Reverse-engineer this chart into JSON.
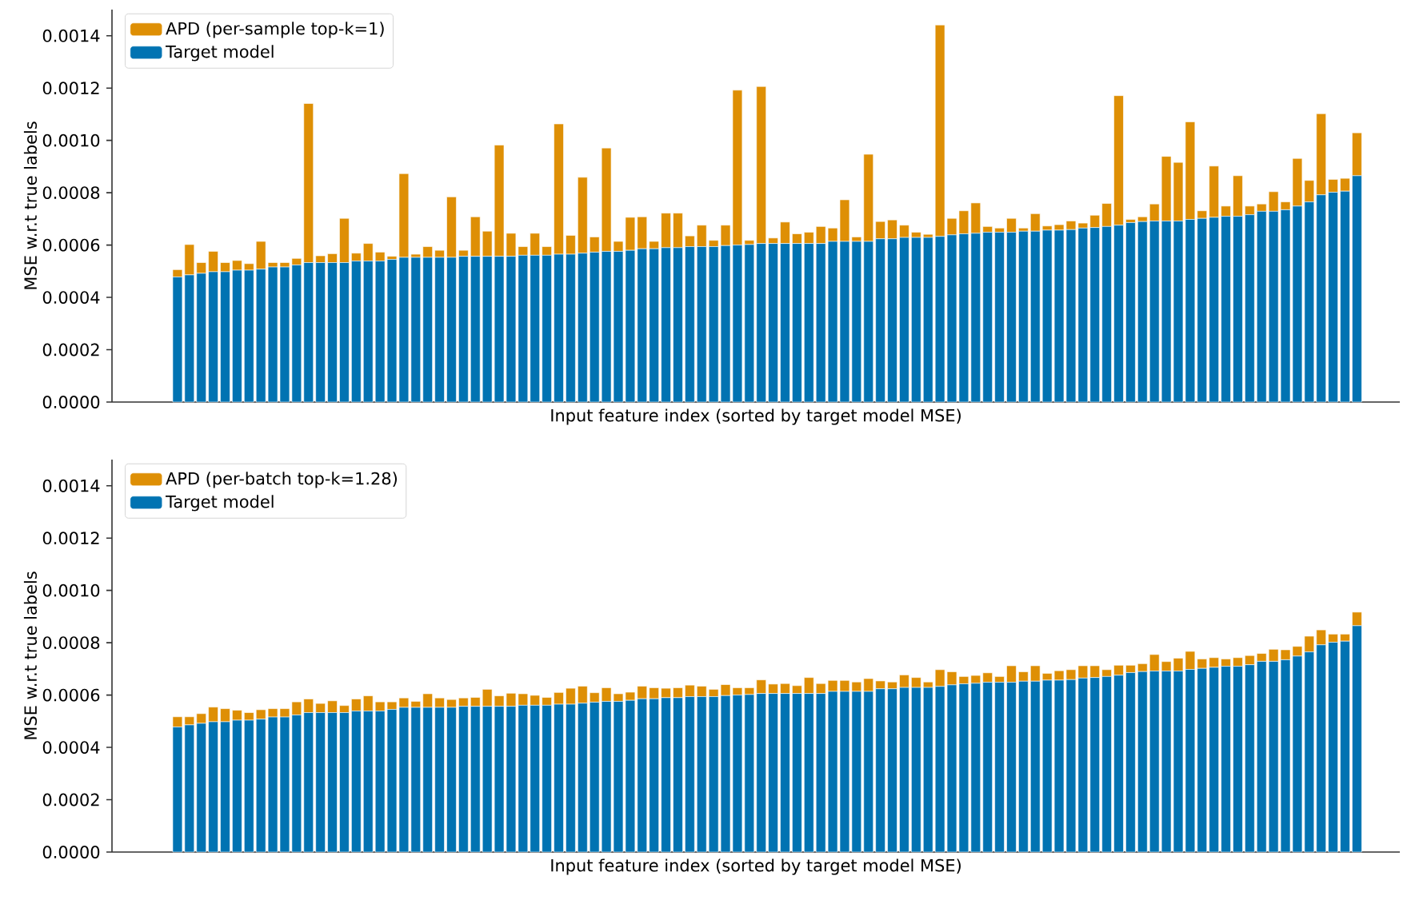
{
  "chart_data": [
    {
      "type": "bar",
      "stacked": true,
      "xlabel": "Input feature index (sorted by target model MSE)",
      "ylabel": "MSE w.r.t true labels",
      "legend": "top left",
      "tick_labels": "y",
      "categories": [
        null,
        null,
        null,
        null,
        null,
        null,
        null,
        null,
        null,
        null,
        null,
        null,
        null,
        null,
        null,
        null,
        null,
        null,
        null,
        null,
        null,
        null,
        null,
        null,
        null,
        null,
        null,
        null,
        null,
        null,
        null,
        null,
        null,
        null,
        null,
        null,
        null,
        null,
        null,
        null,
        null,
        null,
        null,
        null,
        null,
        null,
        null,
        null,
        null,
        null,
        null,
        null,
        null,
        null,
        null,
        null,
        null,
        null,
        null,
        null,
        null,
        null,
        null,
        null,
        null,
        null,
        null,
        null,
        null,
        null,
        null,
        null,
        null,
        null,
        null,
        null,
        null,
        null,
        null,
        null,
        null,
        null,
        null,
        null,
        null,
        null,
        null,
        null,
        null,
        null,
        null,
        null,
        null,
        null,
        null,
        null,
        null,
        null,
        null,
        null
      ],
      "ylim": [
        0,
        0.0015
      ],
      "yticks": [
        {
          "value": 0,
          "label": "0.0000"
        },
        {
          "value": 0.0002,
          "label": "0.0002"
        },
        {
          "value": 0.0004,
          "label": "0.0004"
        },
        {
          "value": 0.0006,
          "label": "0.0006"
        },
        {
          "value": 0.0008,
          "label": "0.0008"
        },
        {
          "value": 0.001,
          "label": "0.0010"
        },
        {
          "value": 0.0012,
          "label": "0.0012"
        },
        {
          "value": 0.0014,
          "label": "0.0014"
        }
      ],
      "series": [
        {
          "name": "Target model",
          "color": "#0173b2",
          "values": [
            0.000478,
            0.000486,
            0.000492,
            0.000498,
            0.000498,
            0.000504,
            0.000504,
            0.000508,
            0.000516,
            0.000516,
            0.000524,
            0.000533,
            0.000533,
            0.000533,
            0.000533,
            0.000539,
            0.000539,
            0.000539,
            0.000545,
            0.000553,
            0.000553,
            0.000553,
            0.000553,
            0.000553,
            0.000557,
            0.000557,
            0.000557,
            0.000557,
            0.000557,
            0.000561,
            0.000561,
            0.000561,
            0.000565,
            0.000565,
            0.000569,
            0.000573,
            0.000576,
            0.000576,
            0.00058,
            0.000586,
            0.000586,
            0.00059,
            0.00059,
            0.000594,
            0.000594,
            0.000594,
            0.000598,
            0.0006,
            0.000602,
            0.000606,
            0.000606,
            0.000606,
            0.000606,
            0.000606,
            0.000606,
            0.000614,
            0.000614,
            0.000614,
            0.000614,
            0.000624,
            0.000624,
            0.000629,
            0.000629,
            0.000629,
            0.000633,
            0.000639,
            0.000643,
            0.000645,
            0.000649,
            0.000649,
            0.000649,
            0.000653,
            0.000653,
            0.000657,
            0.000657,
            0.000659,
            0.000665,
            0.000667,
            0.000671,
            0.000676,
            0.000686,
            0.00069,
            0.000692,
            0.000692,
            0.000692,
            0.000698,
            0.000702,
            0.000706,
            0.00071,
            0.00071,
            0.000716,
            0.000729,
            0.000729,
            0.000735,
            0.000749,
            0.000765,
            0.000792,
            0.000802,
            0.000806,
            0.000865
          ]
        },
        {
          "name": "APD (per-sample top-k=1)",
          "color": "#de8f05",
          "values": [
            2.8e-05,
            0.000116,
            4.1e-05,
            7.8e-05,
            3.5e-05,
            3.7e-05,
            2.5e-05,
            0.000106,
            1.7e-05,
            1.7e-05,
            2.5e-05,
            0.000608,
            2.6e-05,
            3.4e-05,
            0.000169,
            3e-05,
            6.7e-05,
            3.4e-05,
            1.2e-05,
            0.00032,
            1.2e-05,
            4.1e-05,
            2.7e-05,
            0.000231,
            2.3e-05,
            0.000151,
            9.6e-05,
            0.000425,
            8.8e-05,
            3.3e-05,
            8.4e-05,
            3.3e-05,
            0.000498,
            7.2e-05,
            0.00029,
            5.8e-05,
            0.000395,
            3.8e-05,
            0.000126,
            0.000122,
            2.8e-05,
            0.000132,
            0.000132,
            4.1e-05,
            8.2e-05,
            2.4e-05,
            7.8e-05,
            0.000592,
            1.6e-05,
            0.0006,
            2.1e-05,
            8.2e-05,
            3.7e-05,
            4.3e-05,
            6.5e-05,
            5.1e-05,
            0.000159,
            1.7e-05,
            0.000333,
            6.6e-05,
            7.2e-05,
            4.7e-05,
            2e-05,
            1.2e-05,
            0.000808,
            6.3e-05,
            8.8e-05,
            0.000116,
            2.2e-05,
            1.6e-05,
            5.3e-05,
            1.2e-05,
            6.7e-05,
            1.6e-05,
            2.1e-05,
            3.3e-05,
            1.9e-05,
            4.7e-05,
            8.8e-05,
            0.000495,
            1.2e-05,
            1.8e-05,
            6.5e-05,
            0.000247,
            0.000224,
            0.000373,
            2.9e-05,
            0.000196,
            3.9e-05,
            0.000155,
            3.3e-05,
            2.8e-05,
            7.5e-05,
            3e-05,
            0.000182,
            8.2e-05,
            0.00031,
            4.9e-05,
            4.9e-05,
            0.000164
          ]
        }
      ]
    },
    {
      "type": "bar",
      "stacked": true,
      "xlabel": "Input feature index (sorted by target model MSE)",
      "ylabel": "MSE w.r.t true labels",
      "legend": "top left",
      "tick_labels": "y",
      "categories": [
        null,
        null,
        null,
        null,
        null,
        null,
        null,
        null,
        null,
        null,
        null,
        null,
        null,
        null,
        null,
        null,
        null,
        null,
        null,
        null,
        null,
        null,
        null,
        null,
        null,
        null,
        null,
        null,
        null,
        null,
        null,
        null,
        null,
        null,
        null,
        null,
        null,
        null,
        null,
        null,
        null,
        null,
        null,
        null,
        null,
        null,
        null,
        null,
        null,
        null,
        null,
        null,
        null,
        null,
        null,
        null,
        null,
        null,
        null,
        null,
        null,
        null,
        null,
        null,
        null,
        null,
        null,
        null,
        null,
        null,
        null,
        null,
        null,
        null,
        null,
        null,
        null,
        null,
        null,
        null,
        null,
        null,
        null,
        null,
        null,
        null,
        null,
        null,
        null,
        null,
        null,
        null,
        null,
        null,
        null,
        null,
        null,
        null,
        null,
        null
      ],
      "ylim": [
        0,
        0.0015
      ],
      "yticks": [
        {
          "value": 0,
          "label": "0.0000"
        },
        {
          "value": 0.0002,
          "label": "0.0002"
        },
        {
          "value": 0.0004,
          "label": "0.0004"
        },
        {
          "value": 0.0006,
          "label": "0.0006"
        },
        {
          "value": 0.0008,
          "label": "0.0008"
        },
        {
          "value": 0.001,
          "label": "0.0010"
        },
        {
          "value": 0.0012,
          "label": "0.0012"
        },
        {
          "value": 0.0014,
          "label": "0.0014"
        }
      ],
      "series": [
        {
          "name": "Target model",
          "color": "#0173b2",
          "values": [
            0.000478,
            0.000486,
            0.000492,
            0.000498,
            0.000498,
            0.000504,
            0.000504,
            0.000508,
            0.000516,
            0.000516,
            0.000524,
            0.000533,
            0.000533,
            0.000533,
            0.000533,
            0.000539,
            0.000539,
            0.000539,
            0.000545,
            0.000553,
            0.000553,
            0.000553,
            0.000553,
            0.000553,
            0.000557,
            0.000557,
            0.000557,
            0.000557,
            0.000557,
            0.000561,
            0.000561,
            0.000561,
            0.000565,
            0.000565,
            0.000569,
            0.000573,
            0.000576,
            0.000576,
            0.00058,
            0.000586,
            0.000586,
            0.00059,
            0.00059,
            0.000594,
            0.000594,
            0.000594,
            0.000598,
            0.0006,
            0.000602,
            0.000606,
            0.000606,
            0.000606,
            0.000606,
            0.000606,
            0.000606,
            0.000614,
            0.000614,
            0.000614,
            0.000614,
            0.000624,
            0.000624,
            0.000629,
            0.000629,
            0.000629,
            0.000633,
            0.000639,
            0.000643,
            0.000645,
            0.000649,
            0.000649,
            0.000649,
            0.000653,
            0.000653,
            0.000657,
            0.000657,
            0.000659,
            0.000665,
            0.000667,
            0.000671,
            0.000676,
            0.000686,
            0.00069,
            0.000692,
            0.000692,
            0.000692,
            0.000698,
            0.000702,
            0.000706,
            0.00071,
            0.00071,
            0.000716,
            0.000729,
            0.000729,
            0.000735,
            0.000749,
            0.000765,
            0.000792,
            0.000802,
            0.000806,
            0.000865
          ]
        },
        {
          "name": "APD (per-batch top-k=1.28)",
          "color": "#de8f05",
          "values": [
            3.9e-05,
            3.1e-05,
            3.7e-05,
            5.6e-05,
            5e-05,
            3.8e-05,
            2.9e-05,
            3.6e-05,
            3.2e-05,
            3.2e-05,
            5e-05,
            5.2e-05,
            3.5e-05,
            4.5e-05,
            2.7e-05,
            4.6e-05,
            5.8e-05,
            3.5e-05,
            2.9e-05,
            3.6e-05,
            2.3e-05,
            5.2e-05,
            3.6e-05,
            3e-05,
            3.2e-05,
            3.4e-05,
            6.5e-05,
            4e-05,
            5e-05,
            4.4e-05,
            3.8e-05,
            3e-05,
            4.5e-05,
            6.1e-05,
            6.5e-05,
            3.6e-05,
            5.2e-05,
            2.9e-05,
            3.1e-05,
            4.8e-05,
            4.2e-05,
            3.6e-05,
            3.8e-05,
            4.4e-05,
            4e-05,
            2.8e-05,
            4.2e-05,
            2.8e-05,
            2.6e-05,
            5.2e-05,
            3.6e-05,
            3.8e-05,
            3e-05,
            6.1e-05,
            3.8e-05,
            4.2e-05,
            4.2e-05,
            3.6e-05,
            4.9e-05,
            3e-05,
            2.6e-05,
            4.8e-05,
            3.8e-05,
            2.1e-05,
            6.4e-05,
            5e-05,
            2.8e-05,
            3e-05,
            3.6e-05,
            2.2e-05,
            6.3e-05,
            3.6e-05,
            5.9e-05,
            2.6e-05,
            3.6e-05,
            3.8e-05,
            4.7e-05,
            4.5e-05,
            2.6e-05,
            3.8e-05,
            2.8e-05,
            3e-05,
            6.3e-05,
            3.6e-05,
            4.9e-05,
            6.9e-05,
            3.6e-05,
            3.7e-05,
            2.8e-05,
            3.3e-05,
            3.5e-05,
            3e-05,
            4.6e-05,
            3.8e-05,
            3.7e-05,
            6e-05,
            5.7e-05,
            3.1e-05,
            2.7e-05,
            5.2e-05
          ]
        }
      ]
    }
  ]
}
